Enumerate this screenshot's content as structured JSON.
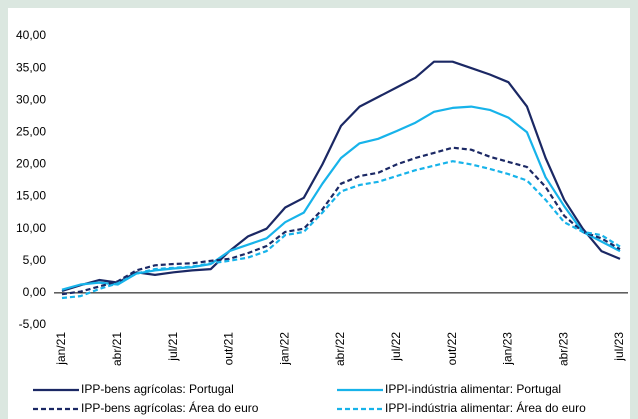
{
  "chart_data": {
    "type": "line",
    "categories": [
      "jan/21",
      null,
      null,
      "abr/21",
      null,
      null,
      "jul/21",
      null,
      null,
      "out/21",
      null,
      null,
      "jan/22",
      null,
      null,
      "abr/22",
      null,
      null,
      "jul/22",
      null,
      null,
      "out/22",
      null,
      null,
      "jan/23",
      null,
      null,
      "abr/23",
      null,
      null,
      "jul/23"
    ],
    "series": [
      {
        "name": "IPP-bens agrícolas: Portugal",
        "color": "#1b2864",
        "dash": false,
        "values": [
          0.3,
          1.2,
          2.0,
          1.6,
          3.2,
          2.8,
          3.2,
          3.5,
          3.7,
          6.5,
          8.8,
          10.0,
          13.3,
          14.8,
          20.0,
          26.0,
          29.0,
          30.5,
          32.0,
          33.5,
          36.0,
          36.0,
          35.0,
          34.0,
          32.8,
          29.0,
          21.0,
          14.5,
          10.0,
          6.5,
          5.3
        ]
      },
      {
        "name": "IPPI-indústria alimentar: Portugal",
        "color": "#17b3ea",
        "dash": false,
        "values": [
          0.5,
          1.3,
          1.6,
          1.3,
          3.0,
          3.5,
          3.8,
          4.0,
          4.5,
          6.5,
          7.5,
          8.5,
          11.0,
          12.5,
          17.0,
          21.0,
          23.3,
          24.0,
          25.2,
          26.5,
          28.2,
          28.8,
          29.0,
          28.5,
          27.3,
          25.0,
          18.0,
          13.5,
          9.5,
          8.0,
          6.5
        ]
      },
      {
        "name": "IPP-bens agrícolas: Área do euro",
        "color": "#1b2864",
        "dash": true,
        "values": [
          -0.2,
          0.2,
          1.0,
          1.8,
          3.5,
          4.3,
          4.5,
          4.6,
          5.0,
          5.3,
          6.2,
          7.3,
          9.5,
          10.0,
          13.0,
          17.0,
          18.2,
          18.7,
          20.0,
          21.0,
          21.8,
          22.6,
          22.3,
          21.2,
          20.4,
          19.6,
          16.5,
          12.0,
          9.5,
          8.5,
          6.8
        ]
      },
      {
        "name": "IPPI-indústria alimentar: Área do euro",
        "color": "#17b3ea",
        "dash": true,
        "values": [
          -0.8,
          -0.5,
          0.6,
          1.5,
          3.0,
          3.7,
          3.9,
          4.1,
          4.6,
          5.0,
          5.5,
          6.5,
          9.0,
          9.5,
          12.5,
          15.8,
          16.8,
          17.3,
          18.2,
          19.1,
          19.8,
          20.5,
          20.0,
          19.3,
          18.5,
          17.5,
          14.5,
          11.0,
          9.5,
          9.0,
          7.2
        ]
      }
    ],
    "ylim": [
      -5,
      40
    ],
    "yticks": [
      {
        "value": -5,
        "label": "-5,00"
      },
      {
        "value": 0,
        "label": "0,00"
      },
      {
        "value": 5,
        "label": "5,00"
      },
      {
        "value": 10,
        "label": "10,00"
      },
      {
        "value": 15,
        "label": "15,00"
      },
      {
        "value": 20,
        "label": "20,00"
      },
      {
        "value": 25,
        "label": "25,00"
      },
      {
        "value": 30,
        "label": "30,00"
      },
      {
        "value": 35,
        "label": "35,00"
      },
      {
        "value": 40,
        "label": "40,00"
      }
    ],
    "grid": false
  }
}
